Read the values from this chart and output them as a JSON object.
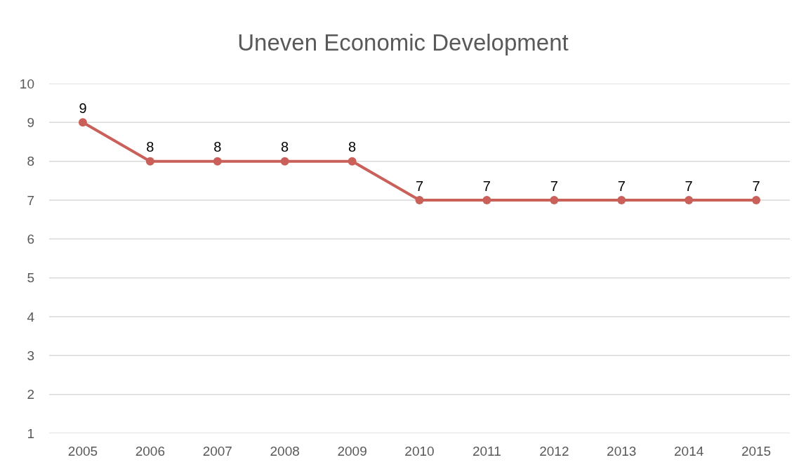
{
  "chart_data": {
    "type": "line",
    "title": "Uneven Economic Development",
    "categories": [
      "2005",
      "2006",
      "2007",
      "2008",
      "2009",
      "2010",
      "2011",
      "2012",
      "2013",
      "2014",
      "2015"
    ],
    "series": [
      {
        "color": "#c9605a",
        "values": [
          9,
          8,
          8,
          8,
          8,
          7,
          7,
          7,
          7,
          7,
          7
        ]
      }
    ],
    "ylim": [
      1,
      10
    ],
    "yticks": [
      1,
      2,
      3,
      4,
      5,
      6,
      7,
      8,
      9,
      10
    ],
    "grid": "y",
    "marker": "circle",
    "line_style": "solid",
    "data_labels": true
  }
}
